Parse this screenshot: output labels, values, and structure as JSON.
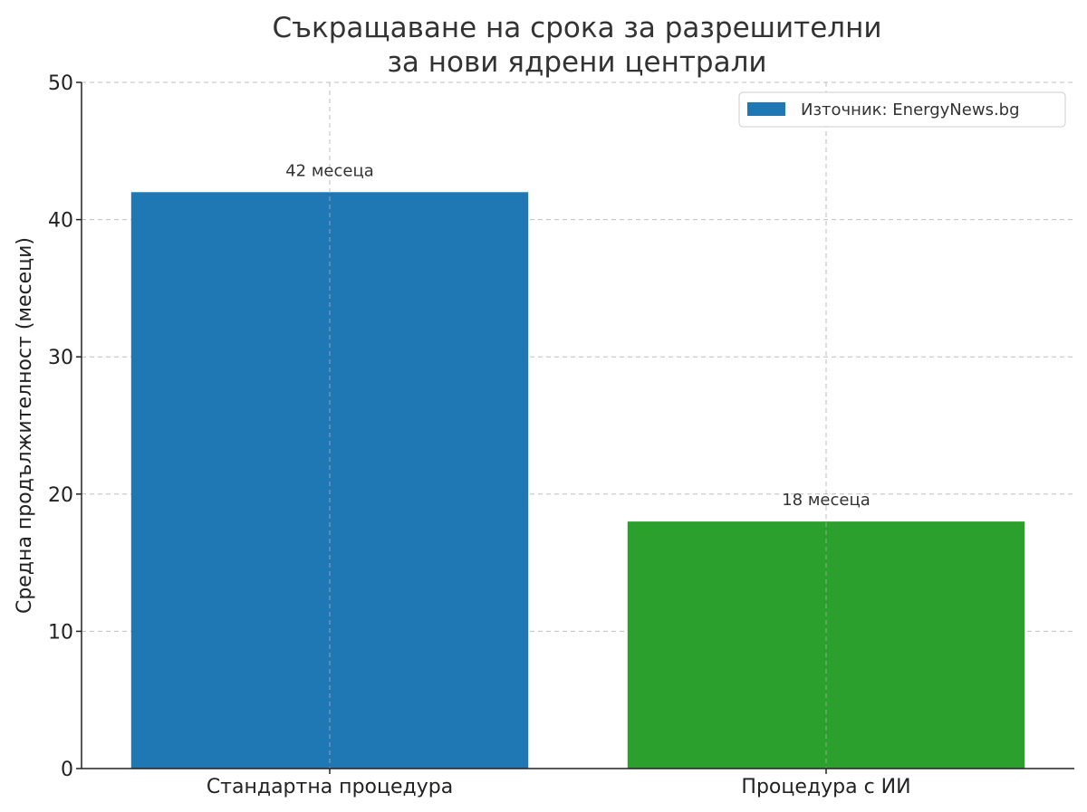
{
  "chart_data": {
    "type": "bar",
    "title_lines": [
      "Съкращаване на срока за разрешителни",
      "за нови ядрени централи"
    ],
    "xlabel": "",
    "ylabel": "Средна продължителност (месеци)",
    "categories": [
      "Стандартна процедура",
      "Процедура с ИИ"
    ],
    "values": [
      42,
      18
    ],
    "colors": [
      "#1f77b4",
      "#2ca02c"
    ],
    "data_labels": [
      "42 месеца",
      "18 месеца"
    ],
    "ylim": [
      0,
      50
    ],
    "yticks": [
      0,
      10,
      20,
      30,
      40,
      50
    ],
    "grid": true,
    "legend": {
      "position": "top-right",
      "entries": [
        {
          "label": "Източник: EnergyNews.bg",
          "color": "#1f77b4"
        }
      ]
    }
  }
}
